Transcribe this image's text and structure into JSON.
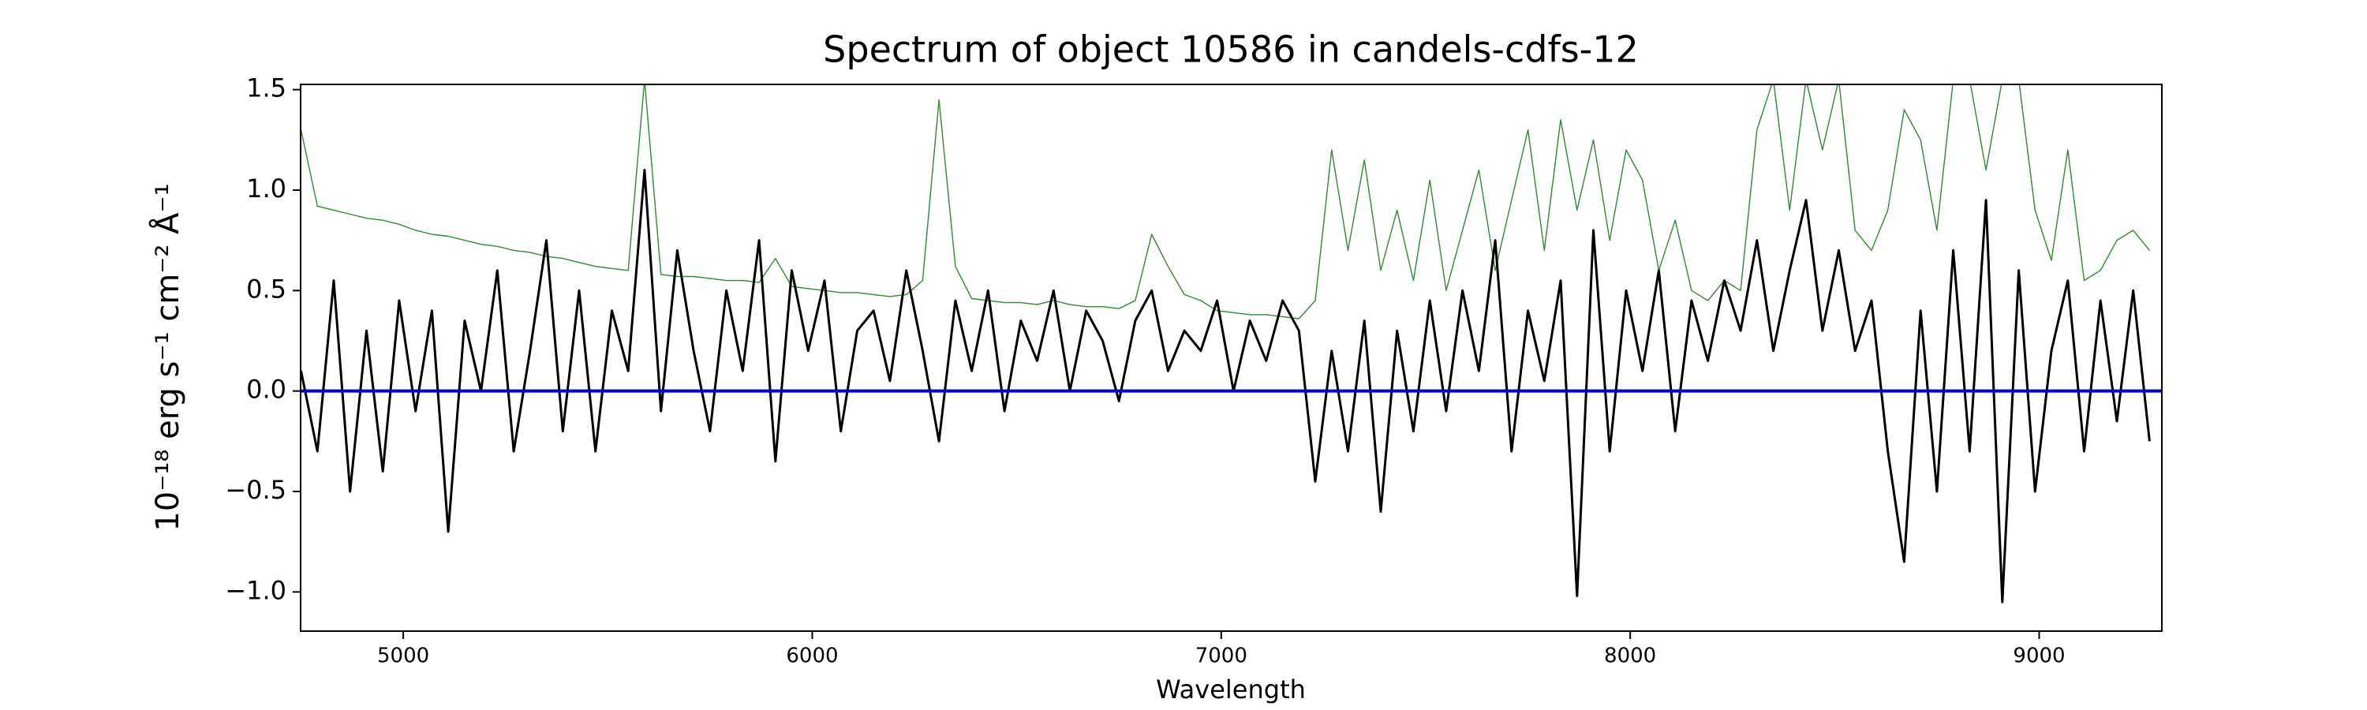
{
  "chart_data": {
    "type": "line",
    "title": "Spectrum of object 10586 in candels-cdfs-12",
    "x_label": "Wavelength",
    "y_label": "10⁻¹⁸ erg s⁻¹ cm⁻² Å⁻¹",
    "xlim": [
      4749,
      9300
    ],
    "ylim": [
      -1.195,
      1.526
    ],
    "xticks": [
      5000,
      6000,
      7000,
      8000,
      9000
    ],
    "yticks": [
      {
        "value": -1.0,
        "label": "−1.0"
      },
      {
        "value": -0.5,
        "label": "−0.5"
      },
      {
        "value": 0.0,
        "label": "0.0"
      },
      {
        "value": 0.5,
        "label": "0.5"
      },
      {
        "value": 1.0,
        "label": "1.0"
      },
      {
        "value": 1.5,
        "label": "1.5"
      }
    ],
    "x": [
      4750,
      4790,
      4830,
      4870,
      4910,
      4950,
      4990,
      5030,
      5070,
      5110,
      5150,
      5190,
      5230,
      5270,
      5310,
      5350,
      5390,
      5430,
      5470,
      5510,
      5550,
      5590,
      5630,
      5670,
      5710,
      5750,
      5790,
      5830,
      5870,
      5910,
      5950,
      5990,
      6030,
      6070,
      6110,
      6150,
      6190,
      6230,
      6270,
      6310,
      6350,
      6390,
      6430,
      6470,
      6510,
      6550,
      6590,
      6630,
      6670,
      6710,
      6750,
      6790,
      6830,
      6870,
      6910,
      6950,
      6990,
      7030,
      7070,
      7110,
      7150,
      7190,
      7230,
      7270,
      7310,
      7350,
      7390,
      7430,
      7470,
      7510,
      7550,
      7590,
      7630,
      7670,
      7710,
      7750,
      7790,
      7830,
      7870,
      7910,
      7950,
      7990,
      8030,
      8070,
      8110,
      8150,
      8190,
      8230,
      8270,
      8310,
      8350,
      8390,
      8430,
      8470,
      8510,
      8550,
      8590,
      8630,
      8670,
      8710,
      8750,
      8790,
      8830,
      8870,
      8910,
      8950,
      8990,
      9030,
      9070,
      9110,
      9150,
      9190,
      9230,
      9270
    ],
    "series": [
      {
        "color": "#2e8b2e",
        "values": [
          1.3,
          0.92,
          0.9,
          0.88,
          0.86,
          0.85,
          0.83,
          0.8,
          0.78,
          0.77,
          0.75,
          0.73,
          0.72,
          0.7,
          0.69,
          0.67,
          0.66,
          0.64,
          0.62,
          0.61,
          0.6,
          1.55,
          0.58,
          0.57,
          0.57,
          0.56,
          0.55,
          0.55,
          0.54,
          0.66,
          0.52,
          0.51,
          0.5,
          0.49,
          0.49,
          0.48,
          0.47,
          0.48,
          0.55,
          1.45,
          0.62,
          0.46,
          0.45,
          0.44,
          0.44,
          0.43,
          0.45,
          0.43,
          0.42,
          0.42,
          0.41,
          0.45,
          0.78,
          0.62,
          0.48,
          0.45,
          0.4,
          0.39,
          0.38,
          0.38,
          0.37,
          0.36,
          0.45,
          1.2,
          0.7,
          1.15,
          0.6,
          0.9,
          0.55,
          1.05,
          0.5,
          0.8,
          1.1,
          0.6,
          0.95,
          1.3,
          0.7,
          1.35,
          0.9,
          1.25,
          0.75,
          1.2,
          1.05,
          0.6,
          0.85,
          0.5,
          0.45,
          0.55,
          0.5,
          1.3,
          1.55,
          0.9,
          1.55,
          1.2,
          1.55,
          0.8,
          0.7,
          0.9,
          1.4,
          1.25,
          0.8,
          1.55,
          1.55,
          1.1,
          1.55,
          1.55,
          0.9,
          0.65,
          1.2,
          0.55,
          0.6,
          0.75,
          0.8,
          0.7
        ]
      },
      {
        "color": "#000000",
        "values": [
          0.1,
          -0.3,
          0.55,
          -0.5,
          0.3,
          -0.4,
          0.45,
          -0.1,
          0.4,
          -0.7,
          0.35,
          0.0,
          0.6,
          -0.3,
          0.2,
          0.75,
          -0.2,
          0.5,
          -0.3,
          0.4,
          0.1,
          1.1,
          -0.1,
          0.7,
          0.2,
          -0.2,
          0.5,
          0.1,
          0.75,
          -0.35,
          0.6,
          0.2,
          0.55,
          -0.2,
          0.3,
          0.4,
          0.05,
          0.6,
          0.2,
          -0.25,
          0.45,
          0.1,
          0.5,
          -0.1,
          0.35,
          0.15,
          0.5,
          0.0,
          0.4,
          0.25,
          -0.05,
          0.35,
          0.5,
          0.1,
          0.3,
          0.2,
          0.45,
          0.0,
          0.35,
          0.15,
          0.45,
          0.3,
          -0.45,
          0.2,
          -0.3,
          0.35,
          -0.6,
          0.3,
          -0.2,
          0.45,
          -0.1,
          0.5,
          0.1,
          0.75,
          -0.3,
          0.4,
          0.05,
          0.55,
          -1.02,
          0.8,
          -0.3,
          0.5,
          0.1,
          0.6,
          -0.2,
          0.45,
          0.15,
          0.55,
          0.3,
          0.75,
          0.2,
          0.6,
          0.95,
          0.3,
          0.7,
          0.2,
          0.45,
          -0.3,
          -0.85,
          0.4,
          -0.5,
          0.7,
          -0.3,
          0.95,
          -1.05,
          0.6,
          -0.5,
          0.2,
          0.55,
          -0.3,
          0.45,
          -0.15,
          0.5,
          -0.25
        ]
      }
    ],
    "zero_line": {
      "y": 0,
      "color": "#0000cc"
    }
  }
}
